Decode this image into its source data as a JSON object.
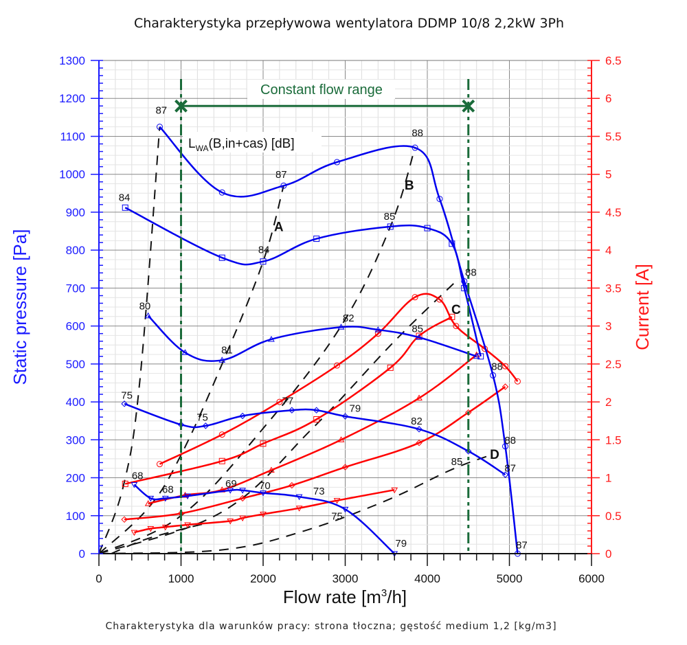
{
  "chart_data": {
    "type": "line",
    "title": "Charakterystyka przepływowa wentylatora DDMP 10/8 2,2kW 3Ph",
    "subtitle": "Charakterystyka dla warunków pracy: strona tłoczna; gęstość medium 1,2 [kg/m3]",
    "xlabel": "Flow rate [m³/h]",
    "xlabel_parts": {
      "pre": "Flow rate [m",
      "sup": "3",
      "post": "/h]"
    },
    "ylabel_left": "Static pressure [Pa]",
    "ylabel_right": "Current [A]",
    "xlim": [
      0,
      6000
    ],
    "ylim_left": [
      0,
      1300
    ],
    "ylim_right": [
      0,
      6.5
    ],
    "x_ticks": [
      "0",
      "1000",
      "2000",
      "3000",
      "4000",
      "5000",
      "6000"
    ],
    "y_ticks_left": [
      "0",
      "100",
      "200",
      "300",
      "400",
      "500",
      "600",
      "700",
      "800",
      "900",
      "1000",
      "1100",
      "1200",
      "1300"
    ],
    "y_ticks_right": [
      "0",
      "0.5",
      "1",
      "1.5",
      "2",
      "2.5",
      "3",
      "3.5",
      "4",
      "4.5",
      "5",
      "5.5",
      "6",
      "6.5"
    ],
    "grid": true,
    "colors": {
      "pressure": "#0000ee",
      "current": "#ff0000",
      "system": "#111111",
      "range": "#1a6b3a",
      "left_axis": "#1a1aff",
      "right_axis": "#ff1a1a"
    },
    "annotation_lwa": {
      "main": "L",
      "sub": "WA",
      "rest": "(B,in+cas) [dB]"
    },
    "constant_flow_range": {
      "label": "Constant flow range",
      "x_min": 1000,
      "x_max": 4500,
      "marker_y": 1180
    },
    "pressure_series": [
      {
        "name": "speed-1",
        "marker": "circle",
        "points": [
          [
            740,
            1125
          ],
          [
            1500,
            952
          ],
          [
            2250,
            970
          ],
          [
            2900,
            1032
          ],
          [
            3850,
            1070
          ],
          [
            4150,
            935
          ],
          [
            4450,
            718
          ],
          [
            4800,
            470
          ],
          [
            4950,
            283
          ],
          [
            5100,
            0
          ]
        ]
      },
      {
        "name": "speed-2",
        "marker": "square",
        "points": [
          [
            320,
            912
          ],
          [
            1500,
            780
          ],
          [
            2000,
            770
          ],
          [
            2650,
            830
          ],
          [
            3550,
            862
          ],
          [
            4000,
            858
          ],
          [
            4300,
            817
          ],
          [
            4450,
            700
          ],
          [
            4650,
            520
          ]
        ]
      },
      {
        "name": "speed-3",
        "marker": "triangle-up",
        "points": [
          [
            600,
            627
          ],
          [
            1050,
            530
          ],
          [
            1500,
            510
          ],
          [
            2100,
            565
          ],
          [
            2950,
            597
          ],
          [
            3400,
            590
          ],
          [
            3900,
            570
          ],
          [
            4600,
            520
          ]
        ]
      },
      {
        "name": "speed-4",
        "marker": "diamond",
        "points": [
          [
            310,
            395
          ],
          [
            1000,
            340
          ],
          [
            1300,
            337
          ],
          [
            1750,
            363
          ],
          [
            2350,
            378
          ],
          [
            2650,
            378
          ],
          [
            3000,
            362
          ],
          [
            3900,
            328
          ],
          [
            4500,
            270
          ],
          [
            4950,
            208
          ]
        ]
      },
      {
        "name": "speed-5",
        "marker": "triangle-down",
        "points": [
          [
            430,
            182
          ],
          [
            630,
            146
          ],
          [
            810,
            146
          ],
          [
            1080,
            152
          ],
          [
            1600,
            167
          ],
          [
            1750,
            167
          ],
          [
            2000,
            160
          ],
          [
            2440,
            150
          ],
          [
            3000,
            117
          ],
          [
            3600,
            0
          ]
        ]
      }
    ],
    "current_series": [
      {
        "name": "speed-1",
        "marker": "circle",
        "points": [
          [
            740,
            1.18
          ],
          [
            1500,
            1.57
          ],
          [
            2200,
            2.0
          ],
          [
            2900,
            2.48
          ],
          [
            3400,
            2.9
          ],
          [
            3850,
            3.38
          ],
          [
            4150,
            3.35
          ],
          [
            4350,
            3.0
          ],
          [
            4700,
            2.7
          ],
          [
            4950,
            2.47
          ],
          [
            5100,
            2.27
          ]
        ]
      },
      {
        "name": "speed-2",
        "marker": "square",
        "points": [
          [
            320,
            0.92
          ],
          [
            1500,
            1.22
          ],
          [
            2000,
            1.45
          ],
          [
            2650,
            1.77
          ],
          [
            3550,
            2.45
          ],
          [
            3900,
            2.87
          ],
          [
            4300,
            3.12
          ]
        ]
      },
      {
        "name": "speed-3",
        "marker": "triangle-up",
        "points": [
          [
            600,
            0.66
          ],
          [
            1050,
            0.77
          ],
          [
            1500,
            0.84
          ],
          [
            2100,
            1.1
          ],
          [
            2950,
            1.5
          ],
          [
            3900,
            2.05
          ],
          [
            4600,
            2.62
          ]
        ]
      },
      {
        "name": "speed-4",
        "marker": "diamond",
        "points": [
          [
            310,
            0.45
          ],
          [
            1000,
            0.53
          ],
          [
            1750,
            0.73
          ],
          [
            2350,
            0.9
          ],
          [
            3000,
            1.14
          ],
          [
            3900,
            1.46
          ],
          [
            4500,
            1.86
          ],
          [
            4950,
            2.2
          ]
        ]
      },
      {
        "name": "speed-5",
        "marker": "triangle-down",
        "points": [
          [
            430,
            0.28
          ],
          [
            630,
            0.33
          ],
          [
            810,
            0.35
          ],
          [
            1080,
            0.38
          ],
          [
            1600,
            0.43
          ],
          [
            1750,
            0.47
          ],
          [
            2000,
            0.52
          ],
          [
            2440,
            0.6
          ],
          [
            2900,
            0.7
          ],
          [
            3600,
            0.84
          ]
        ]
      }
    ],
    "system_curves": [
      {
        "name": "sys-1",
        "points": [
          [
            0,
            0
          ],
          [
            300,
            180
          ],
          [
            500,
            460
          ],
          [
            740,
            1125
          ]
        ]
      },
      {
        "name": "sys-A",
        "points": [
          [
            0,
            0
          ],
          [
            600,
            120
          ],
          [
            1000,
            260
          ],
          [
            1500,
            500
          ],
          [
            2000,
            770
          ],
          [
            2250,
            970
          ]
        ]
      },
      {
        "name": "sys-B",
        "points": [
          [
            0,
            0
          ],
          [
            1000,
            100
          ],
          [
            2000,
            330
          ],
          [
            2950,
            600
          ],
          [
            3550,
            862
          ],
          [
            3850,
            1070
          ]
        ]
      },
      {
        "name": "sys-C",
        "points": [
          [
            0,
            0
          ],
          [
            1500,
            110
          ],
          [
            2600,
            330
          ],
          [
            3600,
            560
          ],
          [
            4350,
            718
          ]
        ]
      },
      {
        "name": "sys-D",
        "points": [
          [
            0,
            0
          ],
          [
            1500,
            10
          ],
          [
            2500,
            60
          ],
          [
            3500,
            140
          ],
          [
            4300,
            222
          ],
          [
            4800,
            262
          ]
        ]
      },
      {
        "name": "sys-6",
        "points": [
          [
            150,
            0
          ],
          [
            600,
            40
          ],
          [
            1300,
            80
          ]
        ]
      }
    ],
    "point_labels": [
      {
        "text": "87",
        "x": 760,
        "y": 1160
      },
      {
        "text": "87",
        "x": 2220,
        "y": 990
      },
      {
        "text": "88",
        "x": 3880,
        "y": 1100
      },
      {
        "text": "84",
        "x": 310,
        "y": 930
      },
      {
        "text": "84",
        "x": 2010,
        "y": 792
      },
      {
        "text": "85",
        "x": 3540,
        "y": 880
      },
      {
        "text": "88",
        "x": 4530,
        "y": 732
      },
      {
        "text": "80",
        "x": 560,
        "y": 644
      },
      {
        "text": "81",
        "x": 1560,
        "y": 528
      },
      {
        "text": "82",
        "x": 3040,
        "y": 612
      },
      {
        "text": "85",
        "x": 3880,
        "y": 584
      },
      {
        "text": "88",
        "x": 4850,
        "y": 484
      },
      {
        "text": "75",
        "x": 340,
        "y": 408
      },
      {
        "text": "75",
        "x": 1260,
        "y": 350
      },
      {
        "text": "77",
        "x": 2300,
        "y": 394
      },
      {
        "text": "79",
        "x": 3120,
        "y": 374
      },
      {
        "text": "82",
        "x": 3870,
        "y": 340
      },
      {
        "text": "85",
        "x": 4360,
        "y": 234
      },
      {
        "text": "88",
        "x": 5010,
        "y": 290
      },
      {
        "text": "87",
        "x": 5010,
        "y": 216
      },
      {
        "text": "68",
        "x": 470,
        "y": 196
      },
      {
        "text": "68",
        "x": 840,
        "y": 160
      },
      {
        "text": "69",
        "x": 1610,
        "y": 176
      },
      {
        "text": "70",
        "x": 2020,
        "y": 170
      },
      {
        "text": "73",
        "x": 2680,
        "y": 156
      },
      {
        "text": "75",
        "x": 2900,
        "y": 90
      },
      {
        "text": "79",
        "x": 3680,
        "y": 18
      },
      {
        "text": "87",
        "x": 5150,
        "y": 14
      }
    ],
    "curve_letters": [
      {
        "text": "A",
        "x": 2190,
        "y": 850
      },
      {
        "text": "B",
        "x": 3780,
        "y": 960
      },
      {
        "text": "C",
        "x": 4350,
        "y": 632
      },
      {
        "text": "D",
        "x": 4820,
        "y": 250
      }
    ]
  }
}
